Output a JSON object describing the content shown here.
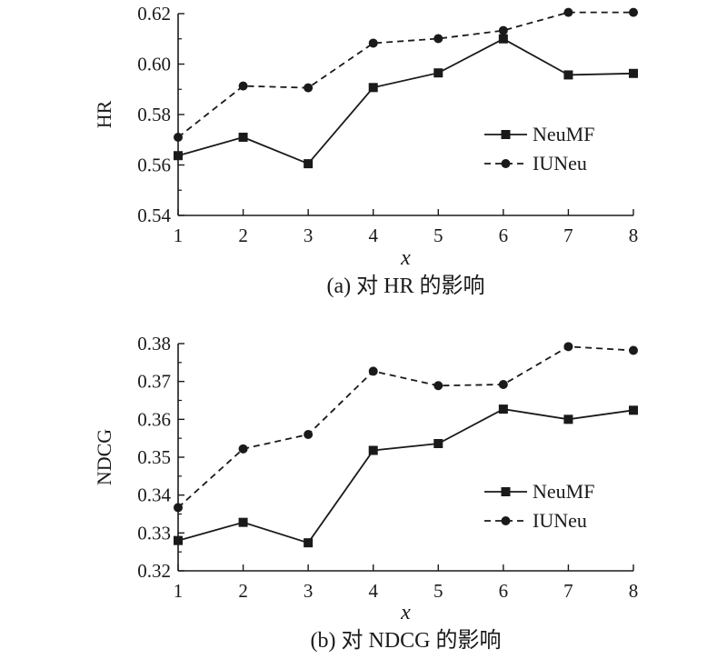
{
  "chart_data": [
    {
      "type": "line",
      "caption": "(a) 对 HR 的影响",
      "xlabel": "x",
      "ylabel": "HR",
      "x": [
        1,
        2,
        3,
        4,
        5,
        6,
        7,
        8
      ],
      "xticks": [
        "1",
        "2",
        "3",
        "4",
        "5",
        "6",
        "7",
        "8"
      ],
      "xlim": [
        1,
        8
      ],
      "ylim": [
        0.54,
        0.62
      ],
      "yticks": [
        0.54,
        0.56,
        0.58,
        0.6,
        0.62
      ],
      "ytick_labels": [
        "0.54",
        "0.56",
        "0.58",
        "0.60",
        "0.62"
      ],
      "legend_position": "right",
      "grid": false,
      "series": [
        {
          "name": "NeuMF",
          "values": [
            0.5637,
            0.571,
            0.5605,
            0.5907,
            0.5965,
            0.61,
            0.5957,
            0.5963
          ],
          "marker": "square",
          "line_style": "solid",
          "color": "#1a1a1a"
        },
        {
          "name": "IUNeu",
          "values": [
            0.571,
            0.5913,
            0.5906,
            0.6083,
            0.6101,
            0.6133,
            0.6205,
            0.6205
          ],
          "marker": "circle",
          "line_style": "dashed",
          "color": "#1a1a1a"
        }
      ]
    },
    {
      "type": "line",
      "caption": "(b) 对 NDCG 的影响",
      "xlabel": "x",
      "ylabel": "NDCG",
      "x": [
        1,
        2,
        3,
        4,
        5,
        6,
        7,
        8
      ],
      "xticks": [
        "1",
        "2",
        "3",
        "4",
        "5",
        "6",
        "7",
        "8"
      ],
      "xlim": [
        1,
        8
      ],
      "ylim": [
        0.32,
        0.38
      ],
      "yticks": [
        0.32,
        0.33,
        0.34,
        0.35,
        0.36,
        0.37,
        0.38
      ],
      "ytick_labels": [
        "0.32",
        "0.33",
        "0.34",
        "0.35",
        "0.36",
        "0.37",
        "0.38"
      ],
      "legend_position": "right",
      "grid": false,
      "series": [
        {
          "name": "NeuMF",
          "values": [
            0.328,
            0.3328,
            0.3274,
            0.3518,
            0.3536,
            0.3627,
            0.36,
            0.3624
          ],
          "marker": "square",
          "line_style": "solid",
          "color": "#1a1a1a"
        },
        {
          "name": "IUNeu",
          "values": [
            0.3367,
            0.3522,
            0.356,
            0.3727,
            0.3689,
            0.3692,
            0.3792,
            0.3782
          ],
          "marker": "circle",
          "line_style": "dashed",
          "color": "#1a1a1a"
        }
      ]
    }
  ]
}
